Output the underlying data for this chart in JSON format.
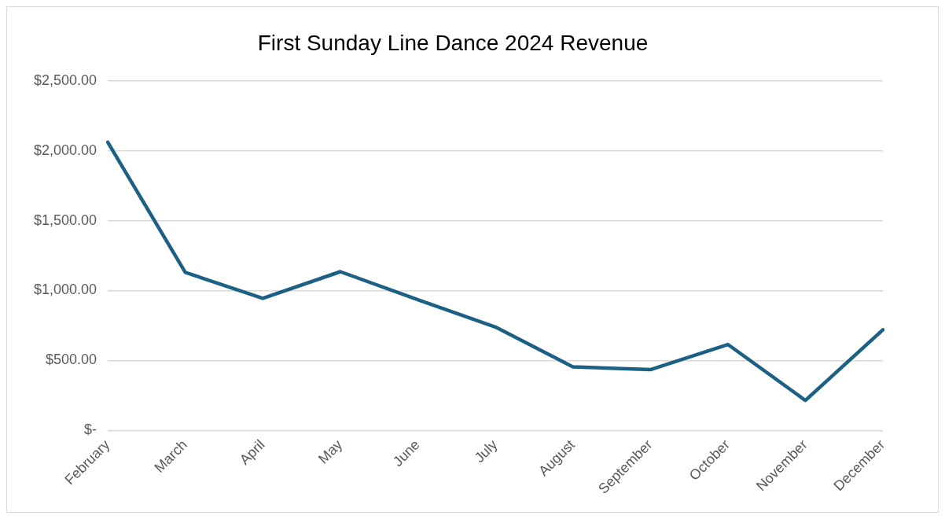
{
  "chart_data": {
    "type": "line",
    "title": "First Sunday Line Dance 2024 Revenue",
    "categories": [
      "February",
      "March",
      "April",
      "May",
      "June",
      "July",
      "August",
      "September",
      "October",
      "November",
      "December"
    ],
    "series": [
      {
        "color": "#1d6086",
        "values": [
          2060,
          1130,
          945,
          1135,
          935,
          740,
          455,
          435,
          615,
          215,
          720
        ]
      }
    ],
    "ylim": [
      0,
      2500
    ],
    "yticks": [
      {
        "value": 0,
        "label": "$-"
      },
      {
        "value": 500,
        "label": "$500.00"
      },
      {
        "value": 1000,
        "label": "$1,000.00"
      },
      {
        "value": 1500,
        "label": "$1,500.00"
      },
      {
        "value": 2000,
        "label": "$2,000.00"
      },
      {
        "value": 2500,
        "label": "$2,500.00"
      }
    ],
    "grid": "y",
    "legend": false,
    "marker": "none",
    "line_style": "solid"
  }
}
